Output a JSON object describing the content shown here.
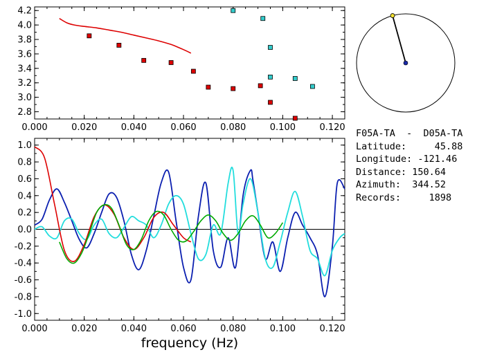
{
  "info": {
    "station_pair": "F05A-TA  -  D05A-TA",
    "latitude_label": "Latitude:",
    "latitude": "45.88",
    "longitude_label": "Longitude:",
    "longitude": "-121.46",
    "distance_label": "Distance:",
    "distance": "150.64",
    "azimuth_label": "Azimuth:",
    "azimuth": "344.52",
    "records_label": "Records:",
    "records": "1898"
  },
  "chart_data": [
    {
      "type": "scatter",
      "xlim": [
        0,
        0.125
      ],
      "ylim": [
        2.7,
        4.25
      ],
      "x_ticks": [
        "0.000",
        "0.020",
        "0.040",
        "0.060",
        "0.080",
        "0.100",
        "0.120"
      ],
      "y_ticks": [
        "2.8",
        "3.0",
        "3.2",
        "3.4",
        "3.6",
        "3.8",
        "4.0",
        "4.2"
      ],
      "series": [
        {
          "color": "#dd0000",
          "type": "line",
          "x": [
            0.01,
            0.013,
            0.016,
            0.02,
            0.025,
            0.03,
            0.035,
            0.04,
            0.045,
            0.05,
            0.055,
            0.06,
            0.063
          ],
          "y": [
            4.09,
            4.03,
            4.0,
            3.98,
            3.96,
            3.93,
            3.9,
            3.86,
            3.82,
            3.78,
            3.73,
            3.66,
            3.61
          ]
        },
        {
          "color": "#dd0000",
          "type": "markers",
          "x": [
            0.022,
            0.034,
            0.044,
            0.055,
            0.064,
            0.07,
            0.08,
            0.091,
            0.095,
            0.105
          ],
          "y": [
            3.85,
            3.72,
            3.51,
            3.48,
            3.36,
            3.14,
            3.12,
            3.16,
            2.93,
            2.71
          ]
        },
        {
          "color": "#33cccc",
          "type": "markers",
          "x": [
            0.08,
            0.092,
            0.095,
            0.095,
            0.105,
            0.112
          ],
          "y": [
            4.2,
            4.09,
            3.69,
            3.28,
            3.26,
            3.15
          ]
        }
      ]
    },
    {
      "type": "line",
      "xlim": [
        0,
        0.125
      ],
      "ylim": [
        -1.08,
        1.08
      ],
      "xlabel": "frequency (Hz)",
      "x_ticks": [
        "0.000",
        "0.020",
        "0.040",
        "0.060",
        "0.080",
        "0.100",
        "0.120"
      ],
      "y_ticks": [
        "1.0",
        "0.8",
        "0.6",
        "0.4",
        "0.2",
        "0.0",
        "-0.2",
        "-0.4",
        "-0.6",
        "-0.8",
        "-1.0"
      ],
      "series": [
        {
          "color": "#0b1fb0",
          "smooth": true,
          "x": [
            0,
            0.003,
            0.006,
            0.009,
            0.012,
            0.015,
            0.018,
            0.021,
            0.024,
            0.027,
            0.03,
            0.033,
            0.036,
            0.039,
            0.042,
            0.045,
            0.048,
            0.051,
            0.054,
            0.057,
            0.06,
            0.063,
            0.066,
            0.069,
            0.072,
            0.075,
            0.078,
            0.081,
            0.084,
            0.087,
            0.088,
            0.09,
            0.093,
            0.096,
            0.099,
            0.102,
            0.105,
            0.108,
            0.111,
            0.114,
            0.117,
            0.12,
            0.122,
            0.125
          ],
          "y": [
            0.05,
            0.12,
            0.35,
            0.48,
            0.32,
            0.1,
            -0.12,
            -0.22,
            -0.05,
            0.2,
            0.42,
            0.38,
            0.1,
            -0.3,
            -0.48,
            -0.25,
            0.15,
            0.55,
            0.68,
            0.1,
            -0.45,
            -0.6,
            0.15,
            0.55,
            -0.25,
            -0.45,
            -0.1,
            -0.45,
            0.4,
            0.7,
            0.58,
            0.2,
            -0.35,
            -0.15,
            -0.5,
            -0.1,
            0.2,
            0.05,
            -0.1,
            -0.3,
            -0.8,
            -0.2,
            0.55,
            0.48
          ]
        },
        {
          "color": "#22dddd",
          "smooth": true,
          "x": [
            0,
            0.003,
            0.006,
            0.009,
            0.012,
            0.015,
            0.018,
            0.021,
            0.024,
            0.027,
            0.03,
            0.033,
            0.036,
            0.039,
            0.042,
            0.045,
            0.048,
            0.051,
            0.054,
            0.057,
            0.06,
            0.063,
            0.066,
            0.069,
            0.072,
            0.075,
            0.078,
            0.08,
            0.082,
            0.084,
            0.087,
            0.09,
            0.093,
            0.096,
            0.099,
            0.102,
            0.105,
            0.108,
            0.111,
            0.114,
            0.117,
            0.12,
            0.123,
            0.125
          ],
          "y": [
            0.0,
            0.03,
            -0.08,
            -0.1,
            0.1,
            0.12,
            -0.05,
            -0.12,
            0.05,
            0.12,
            -0.05,
            -0.1,
            0.02,
            0.15,
            0.1,
            0.05,
            -0.1,
            0.05,
            0.3,
            0.4,
            0.3,
            -0.05,
            -0.35,
            -0.3,
            0.05,
            -0.05,
            0.55,
            0.7,
            -0.05,
            0.3,
            0.6,
            0.2,
            -0.35,
            -0.45,
            -0.15,
            0.2,
            0.45,
            0.15,
            -0.25,
            -0.35,
            -0.55,
            -0.25,
            -0.1,
            -0.05
          ]
        },
        {
          "color": "#dd0000",
          "smooth": true,
          "x": [
            0,
            0.004,
            0.008,
            0.012,
            0.016,
            0.02,
            0.024,
            0.028,
            0.032,
            0.036,
            0.04,
            0.044,
            0.048,
            0.052,
            0.056,
            0.06,
            0.063
          ],
          "y": [
            0.98,
            0.85,
            0.3,
            -0.25,
            -0.38,
            -0.18,
            0.15,
            0.29,
            0.18,
            -0.1,
            -0.24,
            -0.1,
            0.14,
            0.2,
            0.05,
            -0.1,
            -0.15
          ]
        },
        {
          "color": "#00aa00",
          "smooth": true,
          "x": [
            0.01,
            0.013,
            0.016,
            0.019,
            0.022,
            0.025,
            0.028,
            0.031,
            0.034,
            0.037,
            0.04,
            0.043,
            0.046,
            0.049,
            0.052,
            0.055,
            0.058,
            0.061,
            0.064,
            0.067,
            0.07,
            0.073,
            0.076,
            0.079,
            0.082,
            0.085,
            0.088,
            0.091,
            0.094,
            0.097,
            0.1
          ],
          "y": [
            -0.15,
            -0.35,
            -0.4,
            -0.28,
            -0.05,
            0.2,
            0.29,
            0.25,
            0.05,
            -0.18,
            -0.24,
            -0.12,
            0.1,
            0.21,
            0.17,
            0.0,
            -0.13,
            -0.14,
            -0.03,
            0.1,
            0.17,
            0.1,
            -0.05,
            -0.13,
            -0.05,
            0.1,
            0.16,
            0.05,
            -0.1,
            -0.05,
            0.08
          ]
        }
      ]
    },
    {
      "type": "azimuth-dial",
      "azimuth": 344.52,
      "center_color": "#1a2aa8",
      "tip_color": "#f2e030"
    }
  ]
}
